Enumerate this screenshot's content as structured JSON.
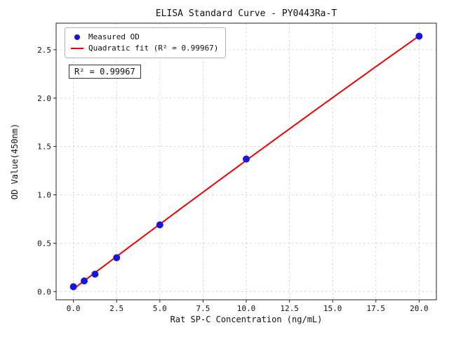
{
  "chart_data": {
    "type": "scatter",
    "title": "ELISA Standard Curve - PY0443Ra-T",
    "xlabel": "Rat SP-C Concentration (ng/mL)",
    "ylabel": "OD Value(450nm)",
    "x": [
      0,
      0.625,
      1.25,
      2.5,
      5,
      10,
      20
    ],
    "y": [
      0.05,
      0.11,
      0.18,
      0.35,
      0.69,
      1.37,
      2.64
    ],
    "xlim": [
      -1,
      21
    ],
    "ylim": [
      -0.085,
      2.775
    ],
    "xticks": [
      0,
      2.5,
      5,
      7.5,
      10,
      12.5,
      15,
      17.5,
      20
    ],
    "xtick_labels": [
      "0.0",
      "2.5",
      "5.0",
      "7.5",
      "10.0",
      "12.5",
      "15.0",
      "17.5",
      "20.0"
    ],
    "yticks": [
      0,
      0.5,
      1,
      1.5,
      2,
      2.5
    ],
    "ytick_labels": [
      "0.0",
      "0.5",
      "1.0",
      "1.5",
      "2.0",
      "2.5"
    ],
    "grid": true,
    "legend": {
      "position": "upper-left",
      "entries": [
        {
          "label": "Measured OD",
          "marker": "circle",
          "color": "#1515dd"
        },
        {
          "label": "Quadratic fit (R² = 0.99967)",
          "marker": "line",
          "color": "#ee0000"
        }
      ]
    },
    "annotation": "R² = 0.99967",
    "fit": {
      "type": "quadratic",
      "r_squared": 0.99967
    },
    "colors": {
      "points": "#1515dd",
      "fit_line": "#ee0000",
      "grid": "#c9c9c9",
      "frame": "#222222",
      "background": "#ffffff"
    }
  }
}
